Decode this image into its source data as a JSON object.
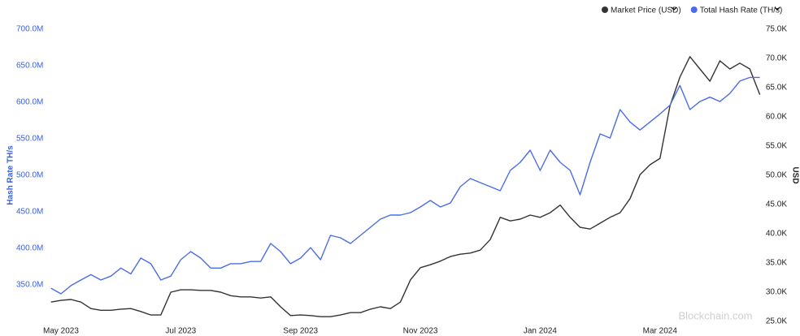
{
  "chart_data": {
    "type": "line",
    "watermark": "Blockchain.com",
    "y_label": "Hash Rate TH/s",
    "y2_label": "USD",
    "categories": [
      null,
      "May 2023",
      null,
      null,
      null,
      null,
      null,
      null,
      null,
      null,
      null,
      null,
      null,
      "Jul 2023",
      null,
      null,
      null,
      null,
      null,
      null,
      null,
      null,
      null,
      null,
      null,
      "Sep 2023",
      null,
      null,
      null,
      null,
      null,
      null,
      null,
      null,
      null,
      null,
      null,
      "Nov 2023",
      null,
      null,
      null,
      null,
      null,
      null,
      null,
      null,
      null,
      null,
      null,
      "Jan 2024",
      null,
      null,
      null,
      null,
      null,
      null,
      null,
      null,
      null,
      null,
      null,
      "Mar 2024",
      null,
      null,
      null,
      null,
      null,
      null,
      null,
      null,
      null,
      null
    ],
    "series": [
      {
        "name": "Market Price (USD)",
        "color": "#333333",
        "axis": "y2",
        "values": [
          28.3,
          28.6,
          28.75,
          28.3,
          27.2,
          26.9,
          26.9,
          27.1,
          27.2,
          26.7,
          26.1,
          26.1,
          30.0,
          30.4,
          30.4,
          30.3,
          30.3,
          30.0,
          29.4,
          29.2,
          29.2,
          29.0,
          29.2,
          27.5,
          26.0,
          26.1,
          26.0,
          25.8,
          25.8,
          26.1,
          26.5,
          26.5,
          27.1,
          27.5,
          27.2,
          28.3,
          32.1,
          34.2,
          34.7,
          35.3,
          36.1,
          36.5,
          36.7,
          37.2,
          39.0,
          42.8,
          42.2,
          42.5,
          43.2,
          42.8,
          43.6,
          44.9,
          42.8,
          41.1,
          40.8,
          41.8,
          42.8,
          43.6,
          46.0,
          50.1,
          51.8,
          52.9,
          61.9,
          66.8,
          70.3,
          68.2,
          66.1,
          69.6,
          68.2,
          69.2,
          68.2,
          63.8
        ]
      },
      {
        "name": "Total Hash Rate (TH/s)",
        "color": "#4a6de5",
        "values": [
          345.5,
          337.8,
          349,
          356.7,
          364,
          356.7,
          362,
          373,
          365,
          386.7,
          379,
          356.7,
          362,
          384.4,
          395.6,
          386.7,
          373,
          373,
          379,
          379,
          382,
          382,
          406.7,
          395.6,
          379,
          386.7,
          401,
          384.4,
          417.8,
          414.4,
          406.7,
          417.8,
          428.9,
          440,
          445.6,
          445.6,
          448.9,
          456.7,
          465.6,
          456.7,
          462,
          484.4,
          495.6,
          490,
          484.4,
          478.9,
          506.7,
          517.8,
          534.4,
          506.7,
          534.4,
          517.8,
          506.7,
          473.3,
          517.8,
          556.7,
          551,
          590,
          573,
          562,
          573,
          584,
          596,
          623,
          590,
          601,
          607,
          601,
          612,
          629,
          634,
          634
        ]
      }
    ],
    "ylim": [
      300,
      700
    ],
    "yticks": [
      {
        "value": 350,
        "label": "350.0M"
      },
      {
        "value": 400,
        "label": "400.0M"
      },
      {
        "value": 450,
        "label": "450.0M"
      },
      {
        "value": 500,
        "label": "500.0M"
      },
      {
        "value": 550,
        "label": "550.0M"
      },
      {
        "value": 600,
        "label": "600.0M"
      },
      {
        "value": 650,
        "label": "650.0M"
      },
      {
        "value": 700,
        "label": "700.0M"
      }
    ],
    "y2lim": [
      25,
      75
    ],
    "y2ticks": [
      {
        "value": 25,
        "label": "25.0K"
      },
      {
        "value": 30,
        "label": "30.0K"
      },
      {
        "value": 35,
        "label": "35.0K"
      },
      {
        "value": 40,
        "label": "40.0K"
      },
      {
        "value": 45,
        "label": "45.0K"
      },
      {
        "value": 50,
        "label": "50.0K"
      },
      {
        "value": 55,
        "label": "55.0K"
      },
      {
        "value": 60,
        "label": "60.0K"
      },
      {
        "value": 65,
        "label": "65.0K"
      },
      {
        "value": 70,
        "label": "70.0K"
      },
      {
        "value": 75,
        "label": "75.0K"
      }
    ],
    "grid": false
  }
}
